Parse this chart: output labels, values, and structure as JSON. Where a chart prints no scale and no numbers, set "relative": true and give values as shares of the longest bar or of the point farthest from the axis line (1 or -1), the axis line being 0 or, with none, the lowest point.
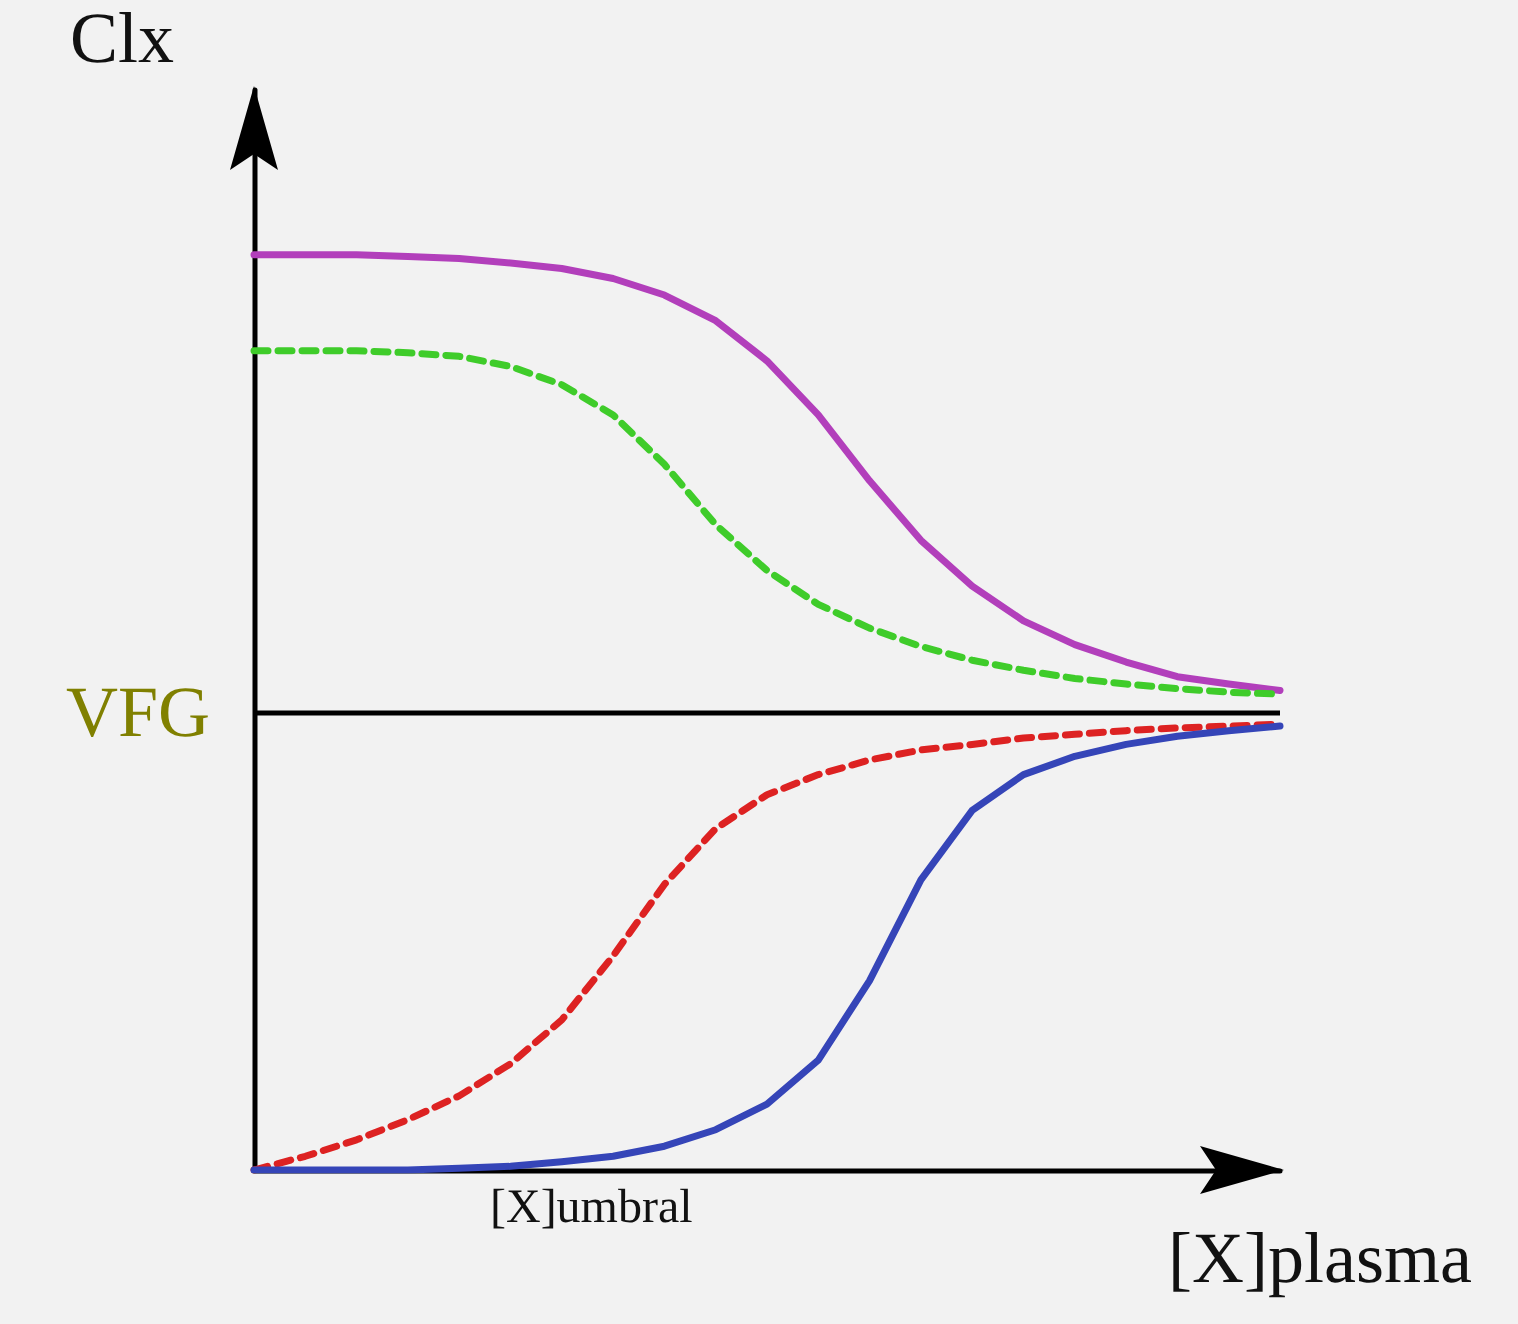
{
  "chart_data": {
    "type": "line",
    "relative": true,
    "xlabel": "[X]plasma",
    "ylabel": "Clx",
    "annotations": [
      "[X]umbral"
    ],
    "grid": false,
    "marker": "none",
    "categories": [
      null,
      null,
      null,
      null,
      null,
      null,
      null,
      null,
      null,
      null,
      null,
      null,
      null,
      null,
      null,
      null,
      null,
      null,
      null,
      null,
      null
    ],
    "series": [
      {
        "color": "#b23fbb",
        "line_style": "solid",
        "values": [
          1.0,
          1.0,
          1.0,
          0.998,
          0.996,
          0.991,
          0.985,
          0.974,
          0.956,
          0.928,
          0.884,
          0.825,
          0.753,
          0.688,
          0.638,
          0.6,
          0.574,
          0.555,
          0.539,
          0.531,
          0.524
        ]
      },
      {
        "color": "#3fcc2a",
        "line_style": "dashed",
        "values": [
          0.895,
          0.895,
          0.895,
          0.893,
          0.889,
          0.878,
          0.858,
          0.825,
          0.771,
          0.705,
          0.655,
          0.618,
          0.592,
          0.572,
          0.557,
          0.546,
          0.537,
          0.531,
          0.526,
          0.522,
          0.52
        ]
      },
      {
        "color": "#dd2222",
        "line_style": "dashed",
        "values": [
          0,
          0.015,
          0.033,
          0.055,
          0.081,
          0.116,
          0.164,
          0.234,
          0.312,
          0.373,
          0.41,
          0.432,
          0.448,
          0.459,
          0.465,
          0.472,
          0.476,
          0.48,
          0.483,
          0.485,
          0.487
        ]
      },
      {
        "color": "#3545b8",
        "line_style": "solid",
        "values": [
          0,
          0,
          0,
          0,
          0.002,
          0.004,
          0.009,
          0.015,
          0.026,
          0.044,
          0.072,
          0.12,
          0.207,
          0.317,
          0.393,
          0.432,
          0.452,
          0.465,
          0.474,
          0.48,
          0.485
        ]
      }
    ],
    "ref_lines": [
      {
        "axis": "y",
        "value": 0.5,
        "label": "VFG",
        "color": "#000000",
        "line_style": "solid"
      }
    ]
  }
}
